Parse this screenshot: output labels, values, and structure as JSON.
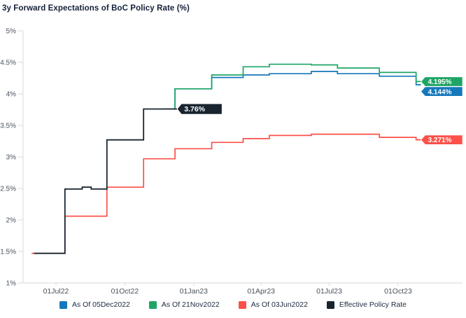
{
  "title": "3y Forward Expectations of BoC Policy Rate (%)",
  "chart_data": {
    "type": "line",
    "interpolation": "step-after",
    "title": "3y Forward Expectations of BoC Policy Rate (%)",
    "grid": false,
    "legend_position": "bottom",
    "colors": {
      "blue": "#1478bb",
      "green": "#1ea565",
      "red": "#fb5149",
      "dark": "#18242f",
      "axis": "#d5dade",
      "tick_text": "#49525c"
    },
    "y_axis": {
      "unit": "%",
      "min": 1,
      "max": 5,
      "ticks": [
        {
          "label": "1%",
          "value": 1
        },
        {
          "label": "1.5%",
          "value": 1.5
        },
        {
          "label": "2%",
          "value": 2
        },
        {
          "label": "2.5%",
          "value": 2.5
        },
        {
          "label": "3%",
          "value": 3
        },
        {
          "label": "3.5%",
          "value": 3.5
        },
        {
          "label": "4%",
          "value": 4
        },
        {
          "label": "4.5%",
          "value": 4.5
        },
        {
          "label": "5%",
          "value": 5
        }
      ]
    },
    "x_axis": {
      "ticks": [
        {
          "label": "01Jul22",
          "date": "2022-07-01"
        },
        {
          "label": "01Oct22",
          "date": "2022-10-01"
        },
        {
          "label": "01Jan23",
          "date": "2023-01-01"
        },
        {
          "label": "01Apr23",
          "date": "2023-04-01"
        },
        {
          "label": "01Jul23",
          "date": "2023-07-01"
        },
        {
          "label": "01Oct23",
          "date": "2023-10-01"
        }
      ]
    },
    "series": [
      {
        "name": "As Of 05Dec2022",
        "color": "#1478bb",
        "end_label": "4.144%",
        "end": "2023-10-31",
        "points": [
          [
            "2022-12-05",
            3.76
          ],
          [
            "2022-12-07",
            4.08
          ],
          [
            "2023-01-25",
            4.26
          ],
          [
            "2023-03-08",
            4.3
          ],
          [
            "2023-04-12",
            4.32
          ],
          [
            "2023-06-07",
            4.355
          ],
          [
            "2023-07-12",
            4.32
          ],
          [
            "2023-09-06",
            4.28
          ],
          [
            "2023-10-25",
            4.144
          ]
        ]
      },
      {
        "name": "As Of 21Nov2022",
        "color": "#1ea565",
        "end_label": "4.195%",
        "end": "2023-10-31",
        "points": [
          [
            "2022-11-21",
            3.76
          ],
          [
            "2022-12-07",
            4.08
          ],
          [
            "2023-01-25",
            4.3
          ],
          [
            "2023-03-08",
            4.43
          ],
          [
            "2023-04-12",
            4.47
          ],
          [
            "2023-06-07",
            4.46
          ],
          [
            "2023-07-12",
            4.41
          ],
          [
            "2023-09-06",
            4.34
          ],
          [
            "2023-10-25",
            4.195
          ]
        ]
      },
      {
        "name": "As Of 03Jun2022",
        "color": "#fb5149",
        "end_label": "3.271%",
        "end": "2023-10-31",
        "points": [
          [
            "2022-05-30",
            1.47
          ],
          [
            "2022-07-13",
            2.06
          ],
          [
            "2022-09-07",
            2.52
          ],
          [
            "2022-10-26",
            2.97
          ],
          [
            "2022-12-07",
            3.13
          ],
          [
            "2023-01-25",
            3.23
          ],
          [
            "2023-03-08",
            3.29
          ],
          [
            "2023-04-12",
            3.34
          ],
          [
            "2023-06-07",
            3.36
          ],
          [
            "2023-09-06",
            3.31
          ],
          [
            "2023-10-25",
            3.271
          ]
        ]
      },
      {
        "name": "Effective Policy Rate",
        "color": "#18242f",
        "end_label": "3.76%",
        "label_inline": true,
        "end": "2022-12-09",
        "points": [
          [
            "2022-06-02",
            1.47
          ],
          [
            "2022-07-13",
            2.49
          ],
          [
            "2022-08-05",
            2.52
          ],
          [
            "2022-08-17",
            2.49
          ],
          [
            "2022-09-07",
            3.27
          ],
          [
            "2022-10-26",
            3.76
          ]
        ]
      }
    ]
  }
}
